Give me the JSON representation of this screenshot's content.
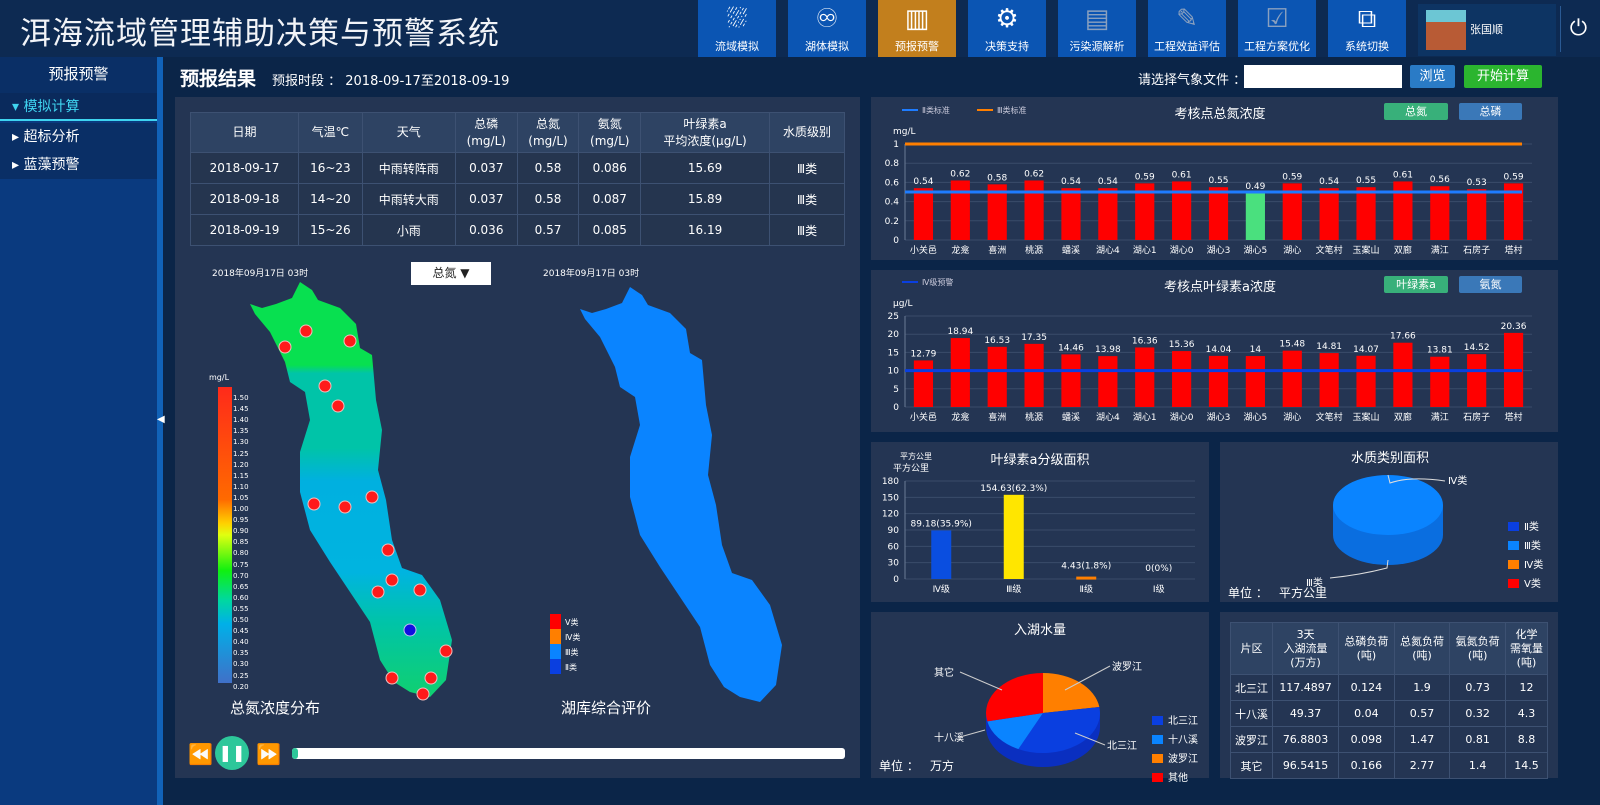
{
  "header": {
    "title": "洱海流域管理辅助决策与预警系统",
    "nav": [
      {
        "label": "流域模拟",
        "icon": "river-icon"
      },
      {
        "label": "湖体模拟",
        "icon": "lake-icon"
      },
      {
        "label": "预报预警",
        "icon": "warning-icon",
        "active": true
      },
      {
        "label": "决策支持",
        "icon": "decision-icon"
      },
      {
        "label": "污染源解析",
        "icon": "document-icon"
      },
      {
        "label": "工程效益评估",
        "icon": "edit-icon"
      },
      {
        "label": "工程方案优化",
        "icon": "clipboard-check-icon"
      },
      {
        "label": "系统切换",
        "icon": "switch-icon"
      }
    ],
    "user": "张国顺"
  },
  "sidebar": {
    "title": "预报预警",
    "items": [
      {
        "label": "模拟计算",
        "selected": true
      },
      {
        "label": "超标分析"
      },
      {
        "label": "蓝藻预警"
      }
    ]
  },
  "main": {
    "title": "预报结果",
    "period": "预报时段 ： 2018-09-17至2018-09-19",
    "file_label": "请选择气象文件 ：",
    "file_value": "",
    "browse": "浏览",
    "start": "开始计算"
  },
  "forecast_table": {
    "headers": [
      "日期",
      "气温℃",
      "天气",
      [
        "总磷",
        "(mg/L)"
      ],
      [
        "总氮",
        "(mg/L)"
      ],
      [
        "氨氮",
        "(mg/L)"
      ],
      [
        "叶绿素a",
        "平均浓度(μg/L)"
      ],
      "水质级别"
    ],
    "rows": [
      [
        "2018-09-17",
        "16~23",
        "中雨转阵雨",
        "0.037",
        "0.58",
        "0.086",
        "15.69",
        "Ⅲ类"
      ],
      [
        "2018-09-18",
        "14~20",
        "中雨转大雨",
        "0.037",
        "0.58",
        "0.087",
        "15.89",
        "Ⅲ类"
      ],
      [
        "2018-09-19",
        "15~26",
        "小雨",
        "0.036",
        "0.57",
        "0.085",
        "16.19",
        "Ⅲ类"
      ]
    ]
  },
  "maps": {
    "left_time": "2018年09月17日  03时",
    "right_time": "2018年09月17日  03时",
    "dropdown": "总氮",
    "left_caption": "总氮浓度分布",
    "right_caption": "湖库综合评价",
    "unit": "mg/L",
    "scale": [
      "1.50",
      "1.45",
      "1.40",
      "1.35",
      "1.30",
      "1.25",
      "1.20",
      "1.15",
      "1.10",
      "1.05",
      "1.00",
      "0.95",
      "0.90",
      "0.85",
      "0.80",
      "0.75",
      "0.70",
      "0.65",
      "0.60",
      "0.55",
      "0.50",
      "0.45",
      "0.40",
      "0.35",
      "0.30",
      "0.25",
      "0.20"
    ],
    "class_legend": [
      {
        "label": "Ⅴ类",
        "color": "#ff0000"
      },
      {
        "label": "Ⅳ类",
        "color": "#ff7f00"
      },
      {
        "label": "Ⅲ类",
        "color": "#0a84ff"
      },
      {
        "label": "Ⅱ类",
        "color": "#0a3fe0"
      }
    ],
    "playback_progress": 0.01
  },
  "chart_data": [
    {
      "type": "bar",
      "title": "考核点总氮浓度",
      "ylabel": "mg/L",
      "ylim": [
        0,
        1
      ],
      "yticks": [
        0,
        0.2,
        0.4,
        0.6,
        0.8,
        1
      ],
      "buttons": [
        "总氮",
        "总磷"
      ],
      "legend": [
        {
          "name": "Ⅱ类标准",
          "color": "#1e7cff",
          "value": 0.5
        },
        {
          "name": "Ⅲ类标准",
          "color": "#ff7f00",
          "value": 1
        }
      ],
      "categories": [
        "小关邑",
        "龙龛",
        "喜洲",
        "桃源",
        "蟠溪",
        "湖心4",
        "湖心1",
        "湖心0",
        "湖心3",
        "湖心5",
        "湖心",
        "文笔村",
        "玉案山",
        "双廊",
        "满江",
        "石房子",
        "塔村"
      ],
      "values": [
        0.54,
        0.62,
        0.58,
        0.62,
        0.54,
        0.54,
        0.59,
        0.61,
        0.55,
        0.49,
        0.59,
        0.54,
        0.55,
        0.61,
        0.56,
        0.53,
        0.59
      ],
      "bar_color": "#ff0000",
      "highlight_color": "#4ae07e"
    },
    {
      "type": "bar",
      "title": "考核点叶绿素a浓度",
      "ylabel": "μg/L",
      "ylim": [
        0,
        25
      ],
      "yticks": [
        0,
        5,
        10,
        15,
        20,
        25
      ],
      "buttons": [
        "叶绿素a",
        "氨氮"
      ],
      "legend": [
        {
          "name": "Ⅳ级预警",
          "color": "#0a3fe0",
          "value": 10
        }
      ],
      "categories": [
        "小关邑",
        "龙龛",
        "喜洲",
        "桃源",
        "蟠溪",
        "湖心4",
        "湖心1",
        "湖心0",
        "湖心3",
        "湖心5",
        "湖心",
        "文笔村",
        "玉案山",
        "双廊",
        "满江",
        "石房子",
        "塔村"
      ],
      "values": [
        12.79,
        18.94,
        16.53,
        17.35,
        14.46,
        13.98,
        16.36,
        15.36,
        14.04,
        14.0,
        15.48,
        14.81,
        14.07,
        17.66,
        13.81,
        14.52,
        20.36
      ],
      "bar_color": "#ff0000"
    },
    {
      "type": "bar",
      "title": "叶绿素a分级面积",
      "ylabel": "平方公里",
      "ylim": [
        0,
        180
      ],
      "yticks": [
        0,
        30,
        60,
        90,
        120,
        150,
        180
      ],
      "categories": [
        "Ⅳ级",
        "Ⅲ级",
        "Ⅱ级",
        "Ⅰ级"
      ],
      "values": [
        89.18,
        154.63,
        4.43,
        0
      ],
      "labels": [
        "89.18(35.9%)",
        "154.63(62.3%)",
        "4.43(1.8%)",
        "0(0%)"
      ],
      "colors": [
        "#0a4ee0",
        "#ffe600",
        "#ff7f00",
        "#888888"
      ]
    },
    {
      "type": "pie",
      "title": "水质类别面积",
      "unit_label": "单位 ：",
      "unit": "平方公里",
      "slices": [
        {
          "name": "Ⅱ类",
          "color": "#0a3fe0",
          "share": 0
        },
        {
          "name": "Ⅲ类",
          "color": "#0a84ff",
          "share": 1
        },
        {
          "name": "Ⅳ类",
          "color": "#ff7f00",
          "share": 0
        },
        {
          "name": "Ⅴ类",
          "color": "#ff0000",
          "share": 0
        }
      ],
      "callouts": [
        "Ⅳ类",
        "Ⅲ类"
      ]
    },
    {
      "type": "pie",
      "title": "入湖水量",
      "unit_label": "单位 ：",
      "unit": "万方",
      "slices": [
        {
          "name": "北三江",
          "color": "#0a3fe0",
          "value": 117.4897
        },
        {
          "name": "十八溪",
          "color": "#0a84ff",
          "value": 49.37
        },
        {
          "name": "波罗江",
          "color": "#ff7f00",
          "value": 76.8803
        },
        {
          "name": "其他",
          "label": "其它",
          "color": "#ff0000",
          "value": 96.5415
        }
      ]
    }
  ],
  "summary_table": {
    "headers": [
      [
        "片区"
      ],
      [
        "3天",
        "入湖流量",
        "(万方)"
      ],
      [
        "总磷负荷",
        "(吨)"
      ],
      [
        "总氮负荷",
        "(吨)"
      ],
      [
        "氨氮负荷",
        "(吨)"
      ],
      [
        "化学",
        "需氧量",
        "(吨)"
      ]
    ],
    "rows": [
      [
        "北三江",
        "117.4897",
        "0.124",
        "1.9",
        "0.73",
        "12"
      ],
      [
        "十八溪",
        "49.37",
        "0.04",
        "0.57",
        "0.32",
        "4.3"
      ],
      [
        "波罗江",
        "76.8803",
        "0.098",
        "1.47",
        "0.81",
        "8.8"
      ],
      [
        "其它",
        "96.5415",
        "0.166",
        "2.77",
        "1.4",
        "14.5"
      ]
    ]
  }
}
